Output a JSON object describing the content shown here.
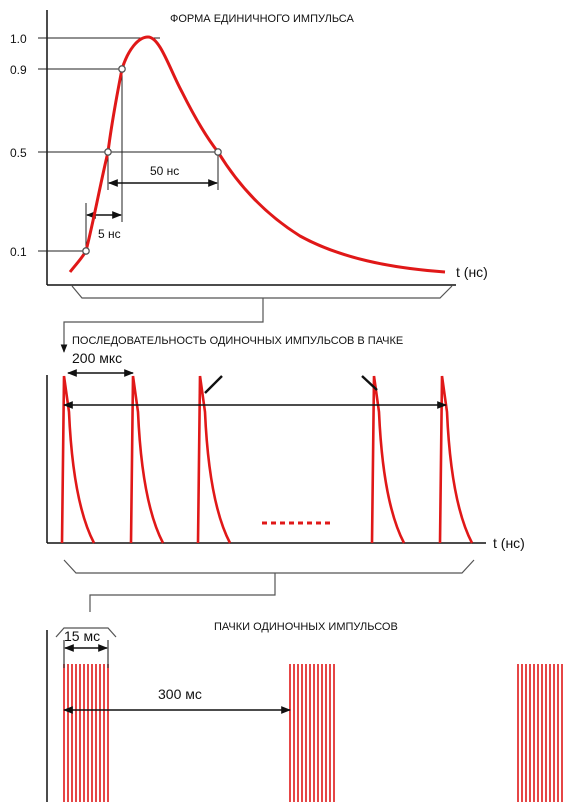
{
  "colors": {
    "pulse": "#e01818",
    "axis": "#111111",
    "guide": "#222222",
    "point_fill": "#ffffff",
    "point_stroke": "#555555"
  },
  "panel1": {
    "title": "ФОРМА ЕДИНИЧНОГО ИМПУЛЬСА",
    "y_ticks": [
      "1.0",
      "0.9",
      "0.5",
      "0.1"
    ],
    "x_label": "t (нс)",
    "rise_label": "5 нс",
    "width_label": "50 нс"
  },
  "panel2": {
    "title": "ПОСЛЕДОВАТЕЛЬНОСТЬ ОДИНОЧНЫХ ИМПУЛЬСОВ В ПАЧКЕ",
    "period_label": "200 мкс",
    "x_label": "t (нс)",
    "visible_pulses": 5
  },
  "panel3": {
    "title": "ПАЧКИ ОДИНОЧНЫХ ИМПУЛЬСОВ",
    "burst_label": "15 мс",
    "period_label": "300 мс",
    "visible_bursts": 3,
    "lines_per_burst": 12
  }
}
